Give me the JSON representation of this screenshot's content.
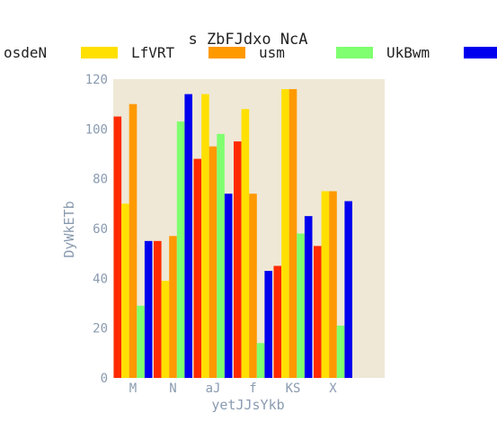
{
  "chart_data": {
    "type": "bar",
    "title": "s ZbFJdxo NcA",
    "xlabel": "yetJJsYkb",
    "ylabel": "DyWkETb",
    "categories": [
      "M",
      "N",
      "aJ",
      "f",
      "KS",
      "X"
    ],
    "ylim": [
      0,
      120
    ],
    "yticks": [
      0,
      20,
      40,
      60,
      80,
      100,
      120
    ],
    "grid": false,
    "legend_position": "top",
    "background_color": "#efe8d6",
    "series": [
      {
        "name": "osdeN",
        "color": "#ff2a00",
        "values": [
          105,
          55,
          88,
          95,
          45,
          53
        ]
      },
      {
        "name": "LfVRT",
        "color": "#ffe000",
        "values": [
          70,
          39,
          114,
          108,
          116,
          75
        ]
      },
      {
        "name": "usm",
        "color": "#ff9900",
        "values": [
          110,
          57,
          93,
          74,
          116,
          75
        ]
      },
      {
        "name": "UkBwm",
        "color": "#80ff70",
        "values": [
          29,
          103,
          98,
          14,
          58,
          21
        ]
      },
      {
        "name": "",
        "color": "#0000ee",
        "values": [
          55,
          114,
          74,
          43,
          65,
          71
        ]
      }
    ]
  }
}
